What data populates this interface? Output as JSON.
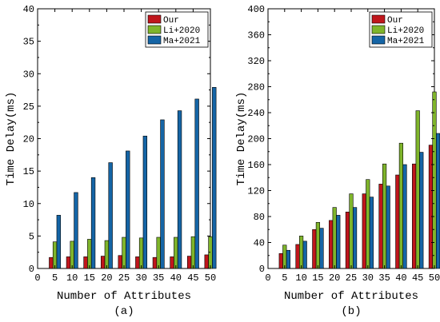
{
  "chart_data": [
    {
      "type": "bar",
      "panel_label": "(a)",
      "xlabel": "Number of Attributes",
      "ylabel": "Time Delay(ms)",
      "categories": [
        5,
        10,
        15,
        20,
        25,
        30,
        35,
        40,
        45,
        50
      ],
      "x_ticks": [
        0,
        5,
        10,
        15,
        20,
        25,
        30,
        35,
        40,
        45,
        50
      ],
      "xlim": [
        0,
        50
      ],
      "ylim": [
        0,
        40
      ],
      "y_ticks": [
        0,
        5,
        10,
        15,
        20,
        25,
        30,
        35,
        40
      ],
      "grid": false,
      "legend_position": "top-right",
      "series": [
        {
          "name": "Our",
          "color": "#c0161c",
          "values": [
            1.7,
            1.8,
            1.8,
            1.9,
            2.0,
            1.8,
            1.7,
            1.8,
            1.9,
            2.1
          ]
        },
        {
          "name": "Li+2020",
          "color": "#7fb52b",
          "values": [
            4.1,
            4.2,
            4.5,
            4.3,
            4.8,
            4.7,
            4.8,
            4.8,
            4.9,
            4.9
          ]
        },
        {
          "name": "Ma+2021",
          "color": "#1565a6",
          "values": [
            8.2,
            11.7,
            14.0,
            16.3,
            18.1,
            20.4,
            22.9,
            24.3,
            26.1,
            27.9
          ]
        }
      ]
    },
    {
      "type": "bar",
      "panel_label": "(b)",
      "xlabel": "Number of Attributes",
      "ylabel": "Time Delay(ms)",
      "categories": [
        5,
        10,
        15,
        20,
        25,
        30,
        35,
        40,
        45,
        50
      ],
      "x_ticks": [
        0,
        5,
        10,
        15,
        20,
        25,
        30,
        35,
        40,
        45,
        50
      ],
      "xlim": [
        0,
        50
      ],
      "ylim": [
        0,
        400
      ],
      "y_ticks": [
        0,
        40,
        80,
        120,
        160,
        200,
        240,
        280,
        320,
        360,
        400
      ],
      "grid": false,
      "legend_position": "top-right",
      "series": [
        {
          "name": "Our",
          "color": "#c0161c",
          "values": [
            23,
            37,
            60,
            74,
            87,
            115,
            130,
            144,
            161,
            190
          ]
        },
        {
          "name": "Li+2020",
          "color": "#7fb52b",
          "values": [
            36,
            50,
            71,
            94,
            115,
            137,
            161,
            193,
            243,
            272
          ]
        },
        {
          "name": "Ma+2021",
          "color": "#1565a6",
          "values": [
            28,
            42,
            62,
            82,
            94,
            110,
            127,
            160,
            179,
            208
          ]
        }
      ]
    }
  ]
}
